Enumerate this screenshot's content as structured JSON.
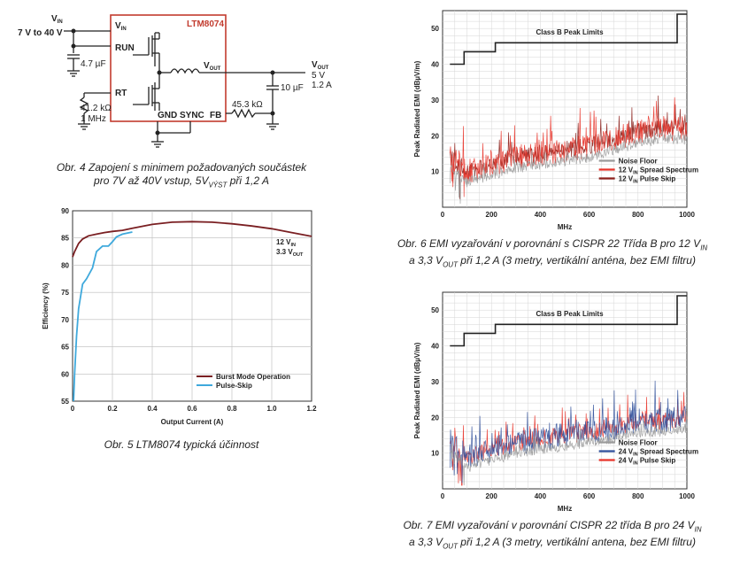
{
  "schematic": {
    "vin_label": "V",
    "vin_sub": "IN",
    "vin_range": "7 V to 40 V",
    "chip_name": "LTM8074",
    "pin_vin": "V",
    "pin_vin_sub": "IN",
    "pin_run": "RUN",
    "pin_rt": "RT",
    "pin_vout": "V",
    "pin_vout_sub": "OUT",
    "pin_gnd_sync": "GND SYNC",
    "pin_fb": "FB",
    "cap_in": "4.7 µF",
    "res_rt": "41.2 kΩ",
    "freq": "1 MHz",
    "cap_out": "10 µF",
    "res_fb": "45.3 kΩ",
    "out_label": "V",
    "out_sub": "OUT",
    "out_v": "5 V",
    "out_i": "1.2 A"
  },
  "captions": {
    "fig4_line1": "Obr. 4  Zapojení s minimem požadovaných součástek",
    "fig4_line2a": "pro 7V až 40V vstup, 5V",
    "fig4_line2sub": "VÝST",
    "fig4_line2b": " při 1,2 A",
    "fig5": "Obr. 5  LTM8074 typická účinnost",
    "fig6_line1a": "Obr. 6  EMI vyzařování v porovnání s CISPR 22 Třída B pro 12 V",
    "fig6_line1sub": "IN",
    "fig6_line2a": "a 3,3 V",
    "fig6_line2sub": "OUT",
    "fig6_line2b": " při 1,2 A (3 metry, vertikální anténa, bez EMI filtru)",
    "fig7_line1a": "Obr. 7  EMI vyzařování v porovnání CISPR 22 třída B pro 24 V",
    "fig7_line1sub": "IN",
    "fig7_line2a": "a 3,3 V",
    "fig7_line2sub": "OUT",
    "fig7_line2b": " při 1,2 A (3 metry, vertikální antena, bez EMI filtru)"
  },
  "chart_data": [
    {
      "type": "line",
      "xlabel": "Output Current (A)",
      "ylabel": "Efficiency (%)",
      "xlim": [
        0,
        1.2
      ],
      "ylim": [
        55,
        90
      ],
      "xticks": [
        "0",
        "0.2",
        "0.4",
        "0.6",
        "0.8",
        "1.0",
        "1.2"
      ],
      "yticks": [
        "55",
        "60",
        "65",
        "70",
        "75",
        "80",
        "85",
        "90"
      ],
      "annotation": {
        "line1": "12 V",
        "line1_sub": "IN",
        "line2": "3.3 V",
        "line2_sub": "OUT"
      },
      "legend_position": "bottom-right",
      "grid": true,
      "series": [
        {
          "name": "Burst Mode Operation",
          "color": "#7a1f22",
          "x": [
            0.0,
            0.01,
            0.03,
            0.05,
            0.08,
            0.12,
            0.16,
            0.2,
            0.25,
            0.3,
            0.4,
            0.5,
            0.6,
            0.7,
            0.8,
            0.9,
            1.0,
            1.1,
            1.2
          ],
          "y": [
            81.5,
            82.5,
            84.0,
            84.8,
            85.4,
            85.7,
            86.0,
            86.2,
            86.4,
            86.8,
            87.5,
            87.9,
            88.0,
            87.9,
            87.6,
            87.2,
            86.7,
            86.0,
            85.3
          ]
        },
        {
          "name": "Pulse-Skip",
          "color": "#3fa9dc",
          "x": [
            0.005,
            0.01,
            0.02,
            0.03,
            0.05,
            0.07,
            0.1,
            0.12,
            0.15,
            0.18,
            0.2,
            0.22,
            0.25,
            0.3
          ],
          "y": [
            55,
            60,
            67,
            72,
            76.5,
            77.5,
            79.5,
            82.5,
            83.5,
            83.5,
            84.3,
            85.2,
            85.7,
            86.1
          ]
        }
      ]
    },
    {
      "type": "line",
      "xlabel": "MHz",
      "ylabel": "Peak Radiated EMI (dBµV/m)",
      "xlim": [
        0,
        1000
      ],
      "ylim": [
        0,
        55
      ],
      "xticks": [
        "0",
        "200",
        "400",
        "600",
        "800",
        "1000"
      ],
      "yticks": [
        "10",
        "20",
        "30",
        "40",
        "50"
      ],
      "limit_label": "Class B Peak Limits",
      "limit_line": {
        "x": [
          30,
          88,
          88,
          216,
          216,
          960,
          960,
          1000
        ],
        "y": [
          40,
          40,
          43.5,
          43.5,
          46,
          46,
          54,
          54
        ]
      },
      "legend_position": "bottom-right",
      "grid": true,
      "series": [
        {
          "name": "Noise Floor",
          "color": "#9a9a9a"
        },
        {
          "name": "12 V",
          "name_sub": "IN",
          "name_rest": " Spread Spectrum",
          "color": "#e8342a"
        },
        {
          "name": "12 V",
          "name_sub": "IN",
          "name_rest": " Pulse Skip",
          "color": "#8b1f1a"
        }
      ],
      "envelope_approx": {
        "x": [
          30,
          100,
          200,
          300,
          400,
          500,
          600,
          700,
          800,
          900,
          1000
        ],
        "y": [
          14,
          10,
          12,
          14,
          15,
          16,
          17,
          19,
          21,
          22,
          22
        ]
      }
    },
    {
      "type": "line",
      "xlabel": "MHz",
      "ylabel": "Peak Radiated EMI (dBµV/m)",
      "xlim": [
        0,
        1000
      ],
      "ylim": [
        0,
        55
      ],
      "xticks": [
        "0",
        "200",
        "400",
        "600",
        "800",
        "1000"
      ],
      "yticks": [
        "10",
        "20",
        "30",
        "40",
        "50"
      ],
      "limit_label": "Class B Peak Limits",
      "limit_line": {
        "x": [
          30,
          88,
          88,
          216,
          216,
          960,
          960,
          1000
        ],
        "y": [
          40,
          40,
          43.5,
          43.5,
          46,
          46,
          54,
          54
        ]
      },
      "legend_position": "bottom-right",
      "grid": true,
      "series": [
        {
          "name": "Noise Floor",
          "color": "#9a9a9a"
        },
        {
          "name": "24 V",
          "name_sub": "IN",
          "name_rest": " Spread Spectrum",
          "color": "#2f4f9a"
        },
        {
          "name": "24 V",
          "name_sub": "IN",
          "name_rest": " Pulse Skip",
          "color": "#e8342a"
        }
      ],
      "envelope_approx": {
        "x": [
          30,
          100,
          200,
          300,
          400,
          500,
          600,
          700,
          800,
          900,
          1000
        ],
        "y": [
          14,
          9,
          11,
          13,
          14,
          15,
          16,
          17,
          19,
          19,
          20
        ]
      }
    }
  ]
}
